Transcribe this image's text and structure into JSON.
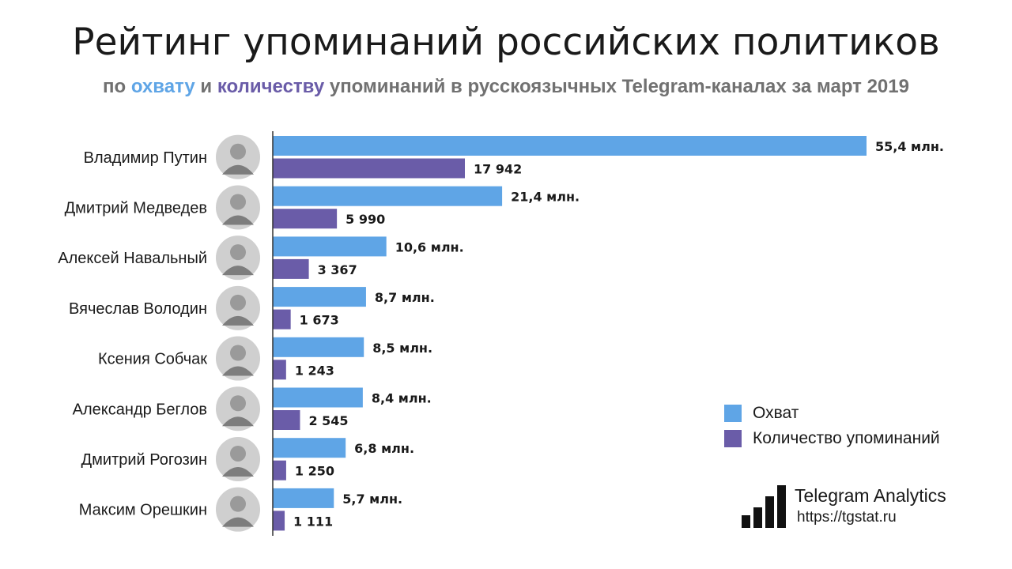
{
  "title": "Рейтинг упоминаний российских политиков",
  "subtitle": {
    "part1": "по ",
    "reach_word": "охвату",
    "part2": " и ",
    "count_word": "количеству",
    "part3": " упоминаний в русскоязычных Telegram-каналах за март 2019"
  },
  "colors": {
    "reach": "#5fa5e6",
    "count": "#6a5ca8",
    "avatar": "#cfcfcf"
  },
  "chart_data": {
    "type": "bar",
    "orientation": "horizontal",
    "categories": [
      "Владимир Путин",
      "Дмитрий Медведев",
      "Алексей Навальный",
      "Вячеслав Володин",
      "Ксения Собчак",
      "Александр Беглов",
      "Дмитрий Рогозин",
      "Максим Орешкин"
    ],
    "series": [
      {
        "name": "Охват",
        "values": [
          55.4,
          21.4,
          10.6,
          8.7,
          8.5,
          8.4,
          6.8,
          5.7
        ],
        "labels": [
          "55,4 млн.",
          "21,4 млн.",
          "10,6 млн.",
          "8,7 млн.",
          "8,5 млн.",
          "8,4 млн.",
          "6,8 млн.",
          "5,7 млн."
        ]
      },
      {
        "name": "Количество упоминаний",
        "values": [
          17942,
          5990,
          3367,
          1673,
          1243,
          2545,
          1250,
          1111
        ],
        "labels": [
          "17 942",
          "5 990",
          "3 367",
          "1 673",
          "1 243",
          "2 545",
          "1 250",
          "1 111"
        ]
      }
    ],
    "legend_position": "bottom-right",
    "grid": false
  },
  "legend": {
    "reach": "Охват",
    "count": "Количество упоминаний"
  },
  "brand": {
    "name": "Telegram Analytics",
    "url": "https://tgstat.ru",
    "logo_icon": "bar-signal-logo-icon"
  }
}
